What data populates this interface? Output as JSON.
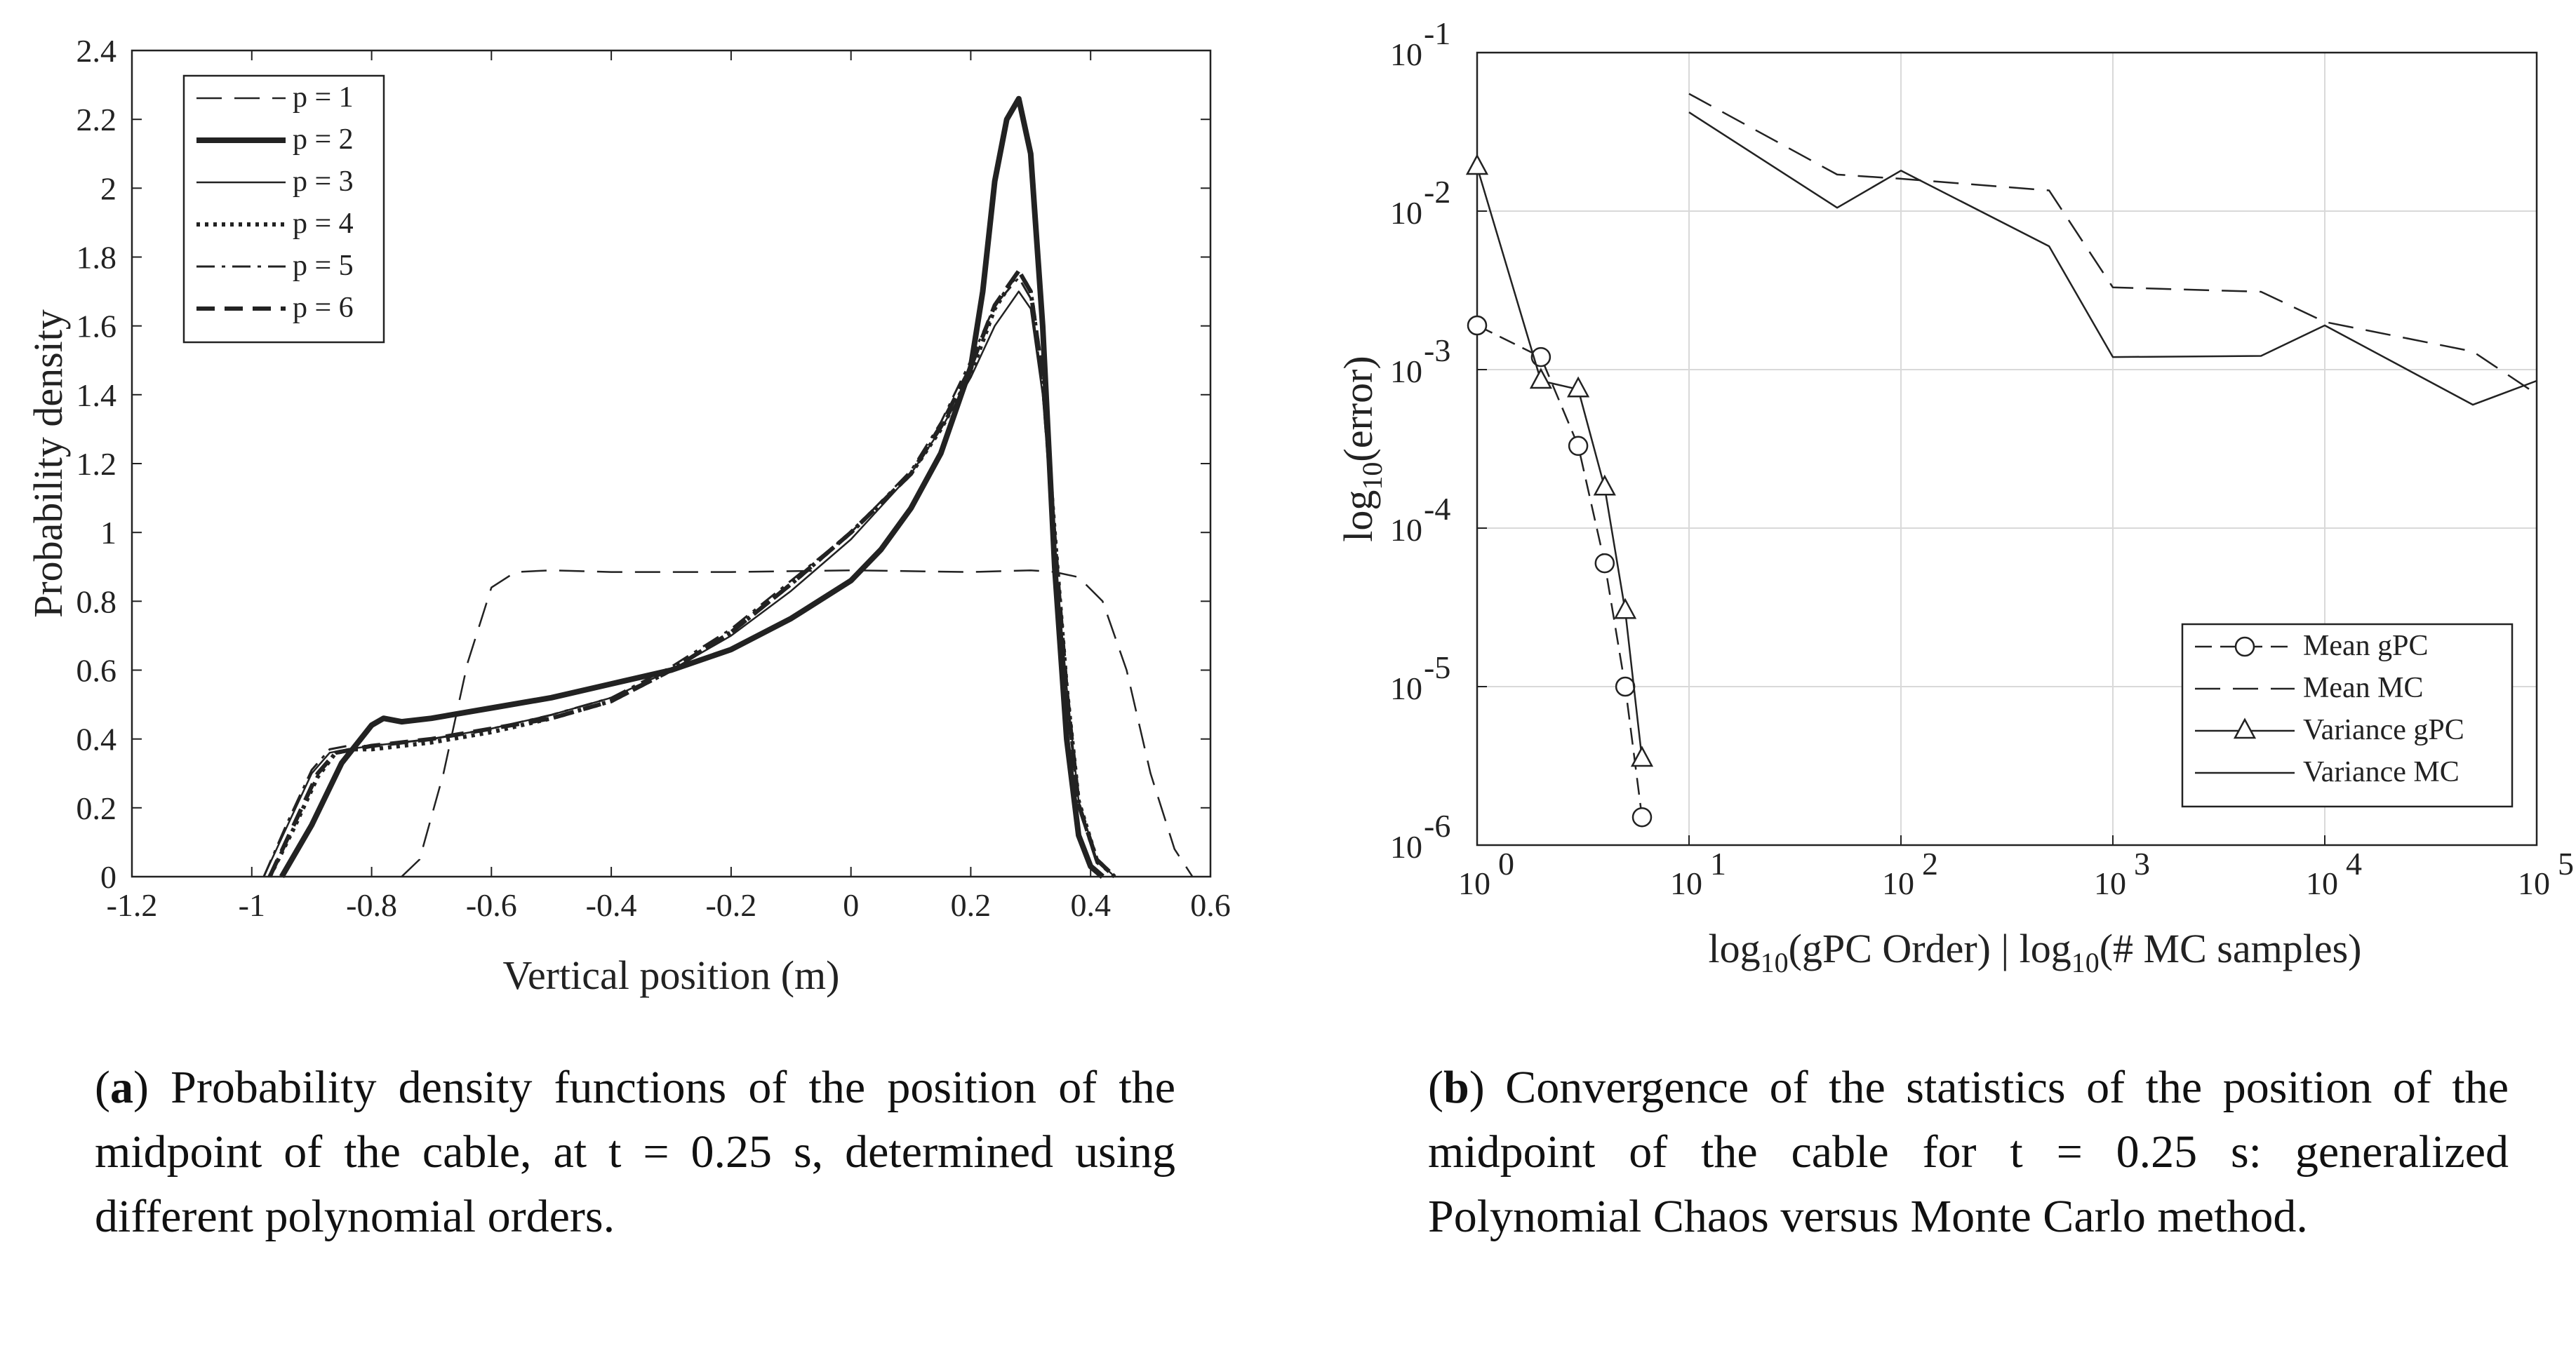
{
  "chart_data": [
    {
      "type": "line",
      "title": "",
      "xlabel": "Vertical position (m)",
      "ylabel": "Probability density",
      "xlim": [
        -1.2,
        0.6
      ],
      "ylim": [
        0,
        2.4
      ],
      "xticks": [
        -1.2,
        -1,
        -0.8,
        -0.6,
        -0.4,
        -0.2,
        0,
        0.2,
        0.4,
        0.6
      ],
      "xtick_labels": [
        "-1.2",
        "-1",
        "-0.8",
        "-0.6",
        "-0.4",
        "-0.2",
        "0",
        "0.2",
        "0.4",
        "0.6"
      ],
      "yticks": [
        0,
        0.2,
        0.4,
        0.6,
        0.8,
        1,
        1.2,
        1.4,
        1.6,
        1.8,
        2,
        2.2,
        2.4
      ],
      "ytick_labels": [
        "0",
        "0.2",
        "0.4",
        "0.6",
        "0.8",
        "1",
        "1.2",
        "1.4",
        "1.6",
        "1.8",
        "2",
        "2.2",
        "2.4"
      ],
      "legend_position": "top-left",
      "series": [
        {
          "name": "p = 1",
          "style": "thin-dashed",
          "x": [
            -0.75,
            -0.72,
            -0.68,
            -0.64,
            -0.6,
            -0.56,
            -0.5,
            -0.4,
            -0.2,
            0,
            0.2,
            0.3,
            0.34,
            0.38,
            0.42,
            0.46,
            0.5,
            0.54,
            0.57
          ],
          "y": [
            0,
            0.05,
            0.3,
            0.62,
            0.84,
            0.885,
            0.89,
            0.885,
            0.885,
            0.89,
            0.885,
            0.89,
            0.885,
            0.87,
            0.8,
            0.6,
            0.3,
            0.08,
            0
          ]
        },
        {
          "name": "p = 2",
          "style": "thick-solid",
          "x": [
            -0.95,
            -0.9,
            -0.85,
            -0.8,
            -0.78,
            -0.75,
            -0.7,
            -0.6,
            -0.5,
            -0.4,
            -0.3,
            -0.2,
            -0.1,
            0,
            0.05,
            0.1,
            0.15,
            0.2,
            0.22,
            0.24,
            0.26,
            0.28,
            0.3,
            0.32,
            0.34,
            0.36,
            0.38,
            0.4,
            0.42
          ],
          "y": [
            0,
            0.15,
            0.33,
            0.44,
            0.46,
            0.45,
            0.46,
            0.49,
            0.52,
            0.56,
            0.6,
            0.66,
            0.75,
            0.86,
            0.95,
            1.07,
            1.23,
            1.48,
            1.7,
            2.02,
            2.2,
            2.26,
            2.1,
            1.6,
            0.9,
            0.4,
            0.12,
            0.03,
            0
          ]
        },
        {
          "name": "p = 3",
          "style": "thin-solid",
          "x": [
            -0.98,
            -0.94,
            -0.9,
            -0.87,
            -0.84,
            -0.8,
            -0.7,
            -0.6,
            -0.5,
            -0.4,
            -0.3,
            -0.2,
            -0.1,
            0,
            0.1,
            0.15,
            0.2,
            0.24,
            0.28,
            0.3,
            0.32,
            0.34,
            0.36,
            0.38,
            0.41,
            0.44
          ],
          "y": [
            0,
            0.15,
            0.3,
            0.36,
            0.37,
            0.38,
            0.4,
            0.43,
            0.47,
            0.52,
            0.6,
            0.7,
            0.83,
            0.98,
            1.17,
            1.3,
            1.45,
            1.6,
            1.7,
            1.65,
            1.4,
            0.95,
            0.55,
            0.22,
            0.05,
            0
          ]
        },
        {
          "name": "p = 4",
          "style": "dotted",
          "x": [
            -0.97,
            -0.93,
            -0.89,
            -0.86,
            -0.83,
            -0.8,
            -0.7,
            -0.6,
            -0.5,
            -0.4,
            -0.3,
            -0.2,
            -0.1,
            0,
            0.1,
            0.15,
            0.2,
            0.24,
            0.28,
            0.3,
            0.32,
            0.34,
            0.36,
            0.38,
            0.41,
            0.44
          ],
          "y": [
            0,
            0.14,
            0.29,
            0.36,
            0.37,
            0.37,
            0.39,
            0.42,
            0.46,
            0.51,
            0.6,
            0.71,
            0.85,
            1.0,
            1.17,
            1.3,
            1.46,
            1.65,
            1.76,
            1.7,
            1.45,
            1.0,
            0.55,
            0.22,
            0.05,
            0
          ]
        },
        {
          "name": "p = 5",
          "style": "dash-dot",
          "x": [
            -0.98,
            -0.94,
            -0.9,
            -0.87,
            -0.84,
            -0.8,
            -0.7,
            -0.6,
            -0.5,
            -0.4,
            -0.3,
            -0.2,
            -0.1,
            0,
            0.1,
            0.15,
            0.2,
            0.24,
            0.28,
            0.3,
            0.32,
            0.34,
            0.36,
            0.38,
            0.41,
            0.44
          ],
          "y": [
            0,
            0.16,
            0.31,
            0.37,
            0.38,
            0.38,
            0.4,
            0.43,
            0.47,
            0.52,
            0.61,
            0.72,
            0.86,
            1.0,
            1.18,
            1.32,
            1.5,
            1.66,
            1.74,
            1.68,
            1.42,
            0.96,
            0.52,
            0.2,
            0.04,
            0
          ]
        },
        {
          "name": "p = 6",
          "style": "thick-dashed",
          "x": [
            -0.97,
            -0.93,
            -0.89,
            -0.86,
            -0.83,
            -0.8,
            -0.7,
            -0.6,
            -0.5,
            -0.4,
            -0.3,
            -0.2,
            -0.1,
            0,
            0.1,
            0.15,
            0.2,
            0.24,
            0.28,
            0.3,
            0.32,
            0.34,
            0.36,
            0.38,
            0.41,
            0.44
          ],
          "y": [
            0,
            0.15,
            0.3,
            0.36,
            0.37,
            0.38,
            0.4,
            0.43,
            0.46,
            0.51,
            0.6,
            0.71,
            0.85,
            1.0,
            1.17,
            1.31,
            1.48,
            1.66,
            1.76,
            1.7,
            1.45,
            0.98,
            0.54,
            0.21,
            0.05,
            0
          ]
        }
      ],
      "caption": {
        "label": "a",
        "text": "Probability density functions of the position of the midpoint of the cable, at t = 0.25 s, determined using different polynomial orders."
      }
    },
    {
      "type": "line",
      "title": "",
      "xscale": "log",
      "yscale": "log",
      "xlabel": "log10(gPC Order) | log10(# MC samples)",
      "ylabel": "log10(error)",
      "xlim": [
        1,
        100000
      ],
      "ylim": [
        1e-06,
        0.1
      ],
      "grid": true,
      "xtick_bases": [
        "10",
        "10",
        "10",
        "10",
        "10",
        "10"
      ],
      "xtick_exponents": [
        "0",
        "1",
        "2",
        "3",
        "4",
        "5"
      ],
      "ytick_bases": [
        "10",
        "10",
        "10",
        "10",
        "10",
        "10"
      ],
      "ytick_exponents": [
        "-6",
        "-5",
        "-4",
        "-3",
        "-2",
        "-1"
      ],
      "xlabel_parts": [
        "log",
        "10",
        "(gPC Order) | log",
        "10",
        "(# MC samples)"
      ],
      "ylabel_parts": [
        "log",
        "10",
        "(error)"
      ],
      "legend_position": "bottom-right",
      "series": [
        {
          "name": "Mean gPC",
          "style": "dashed-circle",
          "x": [
            1,
            2,
            3,
            4,
            5,
            6
          ],
          "y": [
            0.0019,
            0.0012,
            0.00033,
            6e-05,
            1e-05,
            1.5e-06
          ]
        },
        {
          "name": "Mean MC",
          "style": "dashed",
          "x": [
            10,
            50,
            100,
            500,
            1000,
            5000,
            10000,
            50000,
            100000
          ],
          "y": [
            0.055,
            0.017,
            0.016,
            0.0135,
            0.0033,
            0.0031,
            0.002,
            0.0013,
            0.0007
          ]
        },
        {
          "name": "Variance gPC",
          "style": "solid-triangle",
          "x": [
            1,
            2,
            3,
            4,
            5,
            6
          ],
          "y": [
            0.019,
            0.00085,
            0.00075,
            0.00018,
            3e-05,
            3.5e-06
          ]
        },
        {
          "name": "Variance MC",
          "style": "solid",
          "x": [
            10,
            50,
            100,
            500,
            1000,
            5000,
            10000,
            50000,
            100000
          ],
          "y": [
            0.042,
            0.0105,
            0.018,
            0.006,
            0.0012,
            0.00122,
            0.0019,
            0.0006,
            0.00085
          ]
        }
      ],
      "caption": {
        "label": "b",
        "text": "Convergence of the statistics of the position of the midpoint of the cable for t = 0.25 s: generalized Polynomial Chaos versus Monte Carlo method."
      }
    }
  ]
}
